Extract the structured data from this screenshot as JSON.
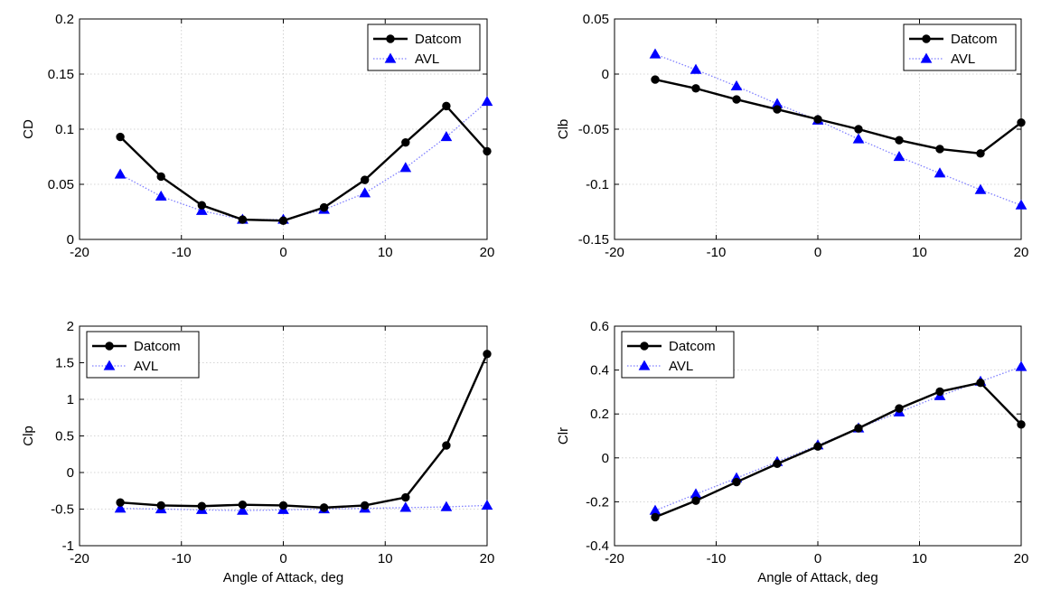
{
  "chart_data": [
    {
      "type": "line",
      "title": "",
      "xlabel": "",
      "ylabel": "CD",
      "xlim": [
        -20,
        20
      ],
      "ylim": [
        0,
        0.2
      ],
      "xticks": [
        "-20",
        "-10",
        "0",
        "10",
        "20"
      ],
      "yticks": [
        "0",
        "0.05",
        "0.1",
        "0.15",
        "0.2"
      ],
      "grid": true,
      "legend": "top-right",
      "x": [
        -16,
        -12,
        -8,
        -4,
        0,
        4,
        8,
        12,
        16,
        20
      ],
      "series": [
        {
          "name": "Datcom",
          "color": "#000000",
          "marker": "circle",
          "style": "solid",
          "values": [
            0.093,
            0.057,
            0.031,
            0.018,
            0.017,
            0.029,
            0.054,
            0.088,
            0.121,
            0.08
          ]
        },
        {
          "name": "AVL",
          "color": "#0000ff",
          "marker": "triangle",
          "style": "dotted",
          "values": [
            0.059,
            0.039,
            0.026,
            0.018,
            0.018,
            0.027,
            0.042,
            0.065,
            0.093,
            0.125
          ]
        }
      ]
    },
    {
      "type": "line",
      "title": "",
      "xlabel": "",
      "ylabel": "Clb",
      "xlim": [
        -20,
        20
      ],
      "ylim": [
        -0.15,
        0.05
      ],
      "xticks": [
        "-20",
        "-10",
        "0",
        "10",
        "20"
      ],
      "yticks": [
        "-0.15",
        "-0.1",
        "-0.05",
        "0",
        "0.05"
      ],
      "grid": true,
      "legend": "top-right",
      "x": [
        -16,
        -12,
        -8,
        -4,
        0,
        4,
        8,
        12,
        16,
        20
      ],
      "series": [
        {
          "name": "Datcom",
          "color": "#000000",
          "marker": "circle",
          "style": "solid",
          "values": [
            -0.005,
            -0.013,
            -0.023,
            -0.032,
            -0.041,
            -0.05,
            -0.06,
            -0.068,
            -0.072,
            -0.044
          ]
        },
        {
          "name": "AVL",
          "color": "#0000ff",
          "marker": "triangle",
          "style": "dotted",
          "values": [
            0.018,
            0.004,
            -0.011,
            -0.027,
            -0.042,
            -0.059,
            -0.075,
            -0.09,
            -0.105,
            -0.119
          ]
        }
      ]
    },
    {
      "type": "line",
      "title": "",
      "xlabel": "Angle of Attack, deg",
      "ylabel": "Clp",
      "xlim": [
        -20,
        20
      ],
      "ylim": [
        -1,
        2
      ],
      "xticks": [
        "-20",
        "-10",
        "0",
        "10",
        "20"
      ],
      "yticks": [
        "-1",
        "-0.5",
        "0",
        "0.5",
        "1",
        "1.5",
        "2"
      ],
      "grid": true,
      "legend": "top-left",
      "x": [
        -16,
        -12,
        -8,
        -4,
        0,
        4,
        8,
        12,
        16,
        20
      ],
      "series": [
        {
          "name": "Datcom",
          "color": "#000000",
          "marker": "circle",
          "style": "solid",
          "values": [
            -0.41,
            -0.45,
            -0.46,
            -0.44,
            -0.45,
            -0.48,
            -0.45,
            -0.34,
            0.37,
            1.62
          ]
        },
        {
          "name": "AVL",
          "color": "#0000ff",
          "marker": "triangle",
          "style": "dotted",
          "values": [
            -0.49,
            -0.5,
            -0.51,
            -0.52,
            -0.51,
            -0.5,
            -0.49,
            -0.48,
            -0.47,
            -0.45
          ]
        }
      ]
    },
    {
      "type": "line",
      "title": "",
      "xlabel": "Angle of Attack, deg",
      "ylabel": "Clr",
      "xlim": [
        -20,
        20
      ],
      "ylim": [
        -0.4,
        0.6
      ],
      "xticks": [
        "-20",
        "-10",
        "0",
        "10",
        "20"
      ],
      "yticks": [
        "-0.4",
        "-0.2",
        "0",
        "0.2",
        "0.4",
        "0.6"
      ],
      "grid": true,
      "legend": "top-left",
      "x": [
        -16,
        -12,
        -8,
        -4,
        0,
        4,
        8,
        12,
        16,
        20
      ],
      "series": [
        {
          "name": "Datcom",
          "color": "#000000",
          "marker": "circle",
          "style": "solid",
          "values": [
            -0.27,
            -0.195,
            -0.11,
            -0.027,
            0.052,
            0.135,
            0.225,
            0.302,
            0.342,
            0.152
          ]
        },
        {
          "name": "AVL",
          "color": "#0000ff",
          "marker": "triangle",
          "style": "dotted",
          "values": [
            -0.24,
            -0.165,
            -0.092,
            -0.018,
            0.058,
            0.135,
            0.208,
            0.282,
            0.348,
            0.415
          ]
        }
      ]
    }
  ]
}
